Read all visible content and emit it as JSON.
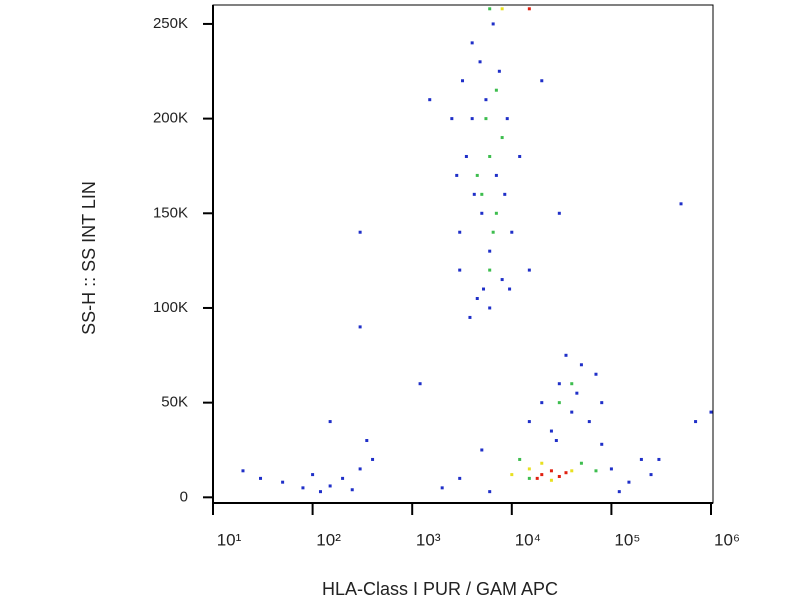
{
  "chart_data": {
    "type": "scatter",
    "x_label": "HLA-Class I PUR / GAM APC",
    "y_label": "SS-H :: SS INT LIN",
    "xscale": "log",
    "xlim": [
      10,
      1000000
    ],
    "xticks": [
      {
        "value": 10,
        "label": "10¹"
      },
      {
        "value": 100,
        "label": "10²"
      },
      {
        "value": 1000,
        "label": "10³"
      },
      {
        "value": 10000,
        "label": "10⁴"
      },
      {
        "value": 100000,
        "label": "10⁵"
      },
      {
        "value": 1000000,
        "label": "10⁶"
      }
    ],
    "ylim": [
      -3000,
      260000
    ],
    "yticks": [
      0,
      {
        "value": 50000,
        "label": "50K"
      },
      {
        "value": 100000,
        "label": "100K"
      },
      {
        "value": 150000,
        "label": "150K"
      },
      {
        "value": 200000,
        "label": "200K"
      },
      {
        "value": 250000,
        "label": "250K"
      }
    ],
    "series": [
      {
        "color": "#1f2fc8",
        "x": [
          3000,
          3500,
          4000,
          4500,
          5000,
          5500,
          6000,
          6500,
          7000,
          8000,
          9000,
          10000,
          3200,
          3800,
          4200,
          4800,
          5200,
          7500,
          8500,
          2800,
          12000,
          15000,
          2500,
          20000,
          1500,
          30000,
          3000,
          6000,
          9500,
          4000,
          20000,
          30000,
          40000,
          50000,
          25000,
          60000,
          35000,
          45000,
          80000,
          15000,
          70000,
          28000,
          2000,
          3000,
          100000,
          150000,
          200000,
          5000,
          120000,
          80000,
          6000,
          250000,
          50,
          80,
          100,
          150,
          200,
          300,
          120,
          250,
          400,
          30,
          20,
          350,
          150,
          300,
          300,
          1200,
          700000,
          500000,
          1000000,
          300000
        ],
        "values": [
          120000,
          180000,
          240000,
          105000,
          150000,
          210000,
          130000,
          250000,
          170000,
          115000,
          200000,
          140000,
          220000,
          95000,
          160000,
          230000,
          110000,
          225000,
          160000,
          170000,
          180000,
          120000,
          200000,
          220000,
          210000,
          150000,
          140000,
          100000,
          110000,
          200000,
          50000,
          60000,
          45000,
          70000,
          35000,
          40000,
          75000,
          55000,
          50000,
          40000,
          65000,
          30000,
          5000,
          10000,
          15000,
          8000,
          20000,
          25000,
          3000,
          28000,
          3000,
          12000,
          8000,
          5000,
          12000,
          6000,
          10000,
          15000,
          3000,
          4000,
          20000,
          10000,
          14000,
          30000,
          40000,
          140000,
          90000,
          60000,
          40000,
          155000,
          45000,
          20000
        ]
      },
      {
        "color": "#3dbd4e",
        "x": [
          5000,
          6000,
          7000,
          5500,
          6500,
          4500,
          8000,
          6000,
          7000,
          30000,
          40000,
          12000,
          50000,
          70000,
          15000,
          6000
        ],
        "values": [
          160000,
          180000,
          150000,
          200000,
          140000,
          170000,
          190000,
          120000,
          215000,
          50000,
          60000,
          20000,
          18000,
          14000,
          10000,
          258000
        ]
      },
      {
        "color": "#e8e020",
        "x": [
          15000,
          20000,
          40000,
          25000,
          10000,
          8000
        ],
        "values": [
          15000,
          18000,
          14000,
          9000,
          12000,
          258000
        ]
      },
      {
        "color": "#e02010",
        "x": [
          20000,
          25000,
          30000,
          18000,
          35000,
          15000
        ],
        "values": [
          12000,
          14000,
          11000,
          10000,
          13000,
          258000
        ]
      }
    ]
  }
}
